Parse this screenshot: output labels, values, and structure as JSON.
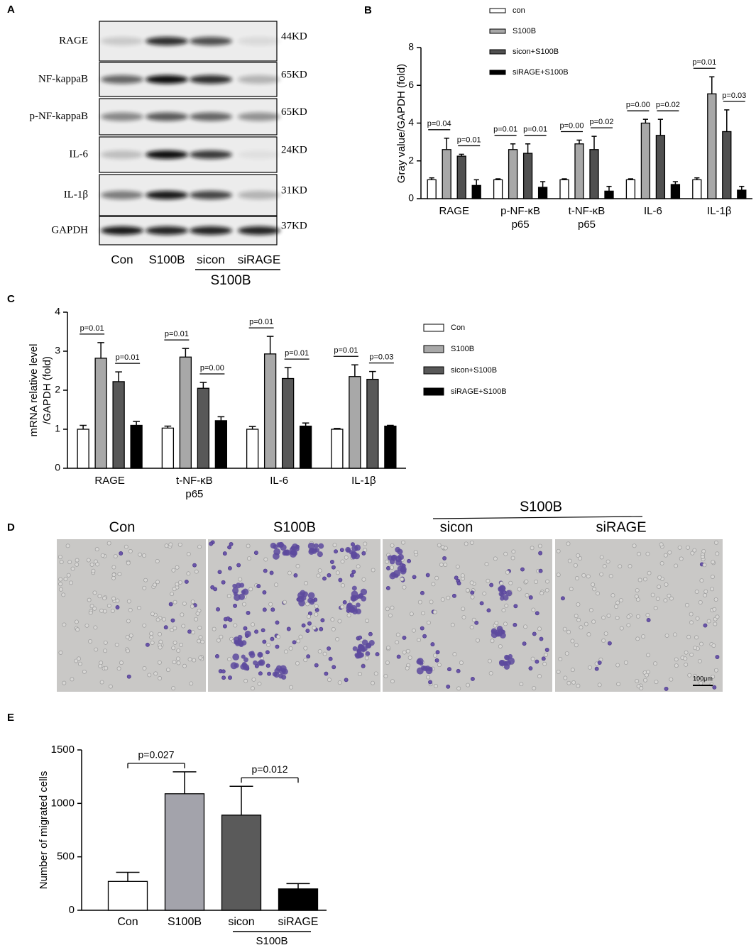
{
  "blot": {
    "panel_label": "A",
    "rows": [
      {
        "label": "RAGE",
        "size": "44KD"
      },
      {
        "label": "NF-kappaB",
        "size": "65KD"
      },
      {
        "label": "p-NF-kappaB",
        "size": "65KD"
      },
      {
        "label": "IL-6",
        "size": "24KD"
      },
      {
        "label": "IL-1β",
        "size": "31KD"
      },
      {
        "label": "GAPDH",
        "size": "37KD"
      }
    ],
    "lanes": [
      "Con",
      "S100B",
      "sicon",
      "siRAGE"
    ],
    "group_label": "S100B"
  },
  "chart_data": [
    {
      "type": "bar",
      "panel_label": "B",
      "ylabel": "Gray value/GAPDH (fold)",
      "categories": [
        [
          "RAGE"
        ],
        [
          "p-NF-κB",
          "p65"
        ],
        [
          "t-NF-κB",
          "p65"
        ],
        [
          "IL-6"
        ],
        [
          "IL-1β"
        ]
      ],
      "series": [
        {
          "name": "con",
          "color": "#ffffff",
          "values": [
            1.0,
            1.0,
            1.0,
            1.0,
            1.0
          ],
          "errors": [
            0.1,
            0.05,
            0.05,
            0.05,
            0.1
          ]
        },
        {
          "name": "S100B",
          "color": "#a8a8a8",
          "values": [
            2.6,
            2.6,
            2.9,
            4.0,
            5.55
          ],
          "errors": [
            0.6,
            0.3,
            0.2,
            0.2,
            0.9
          ]
        },
        {
          "name": "sicon+S100B",
          "color": "#505050",
          "values": [
            2.25,
            2.4,
            2.6,
            3.35,
            3.55
          ],
          "errors": [
            0.1,
            0.5,
            0.7,
            0.85,
            1.15
          ]
        },
        {
          "name": "siRAGE+S100B",
          "color": "#000000",
          "values": [
            0.7,
            0.6,
            0.4,
            0.75,
            0.45
          ],
          "errors": [
            0.3,
            0.3,
            0.25,
            0.15,
            0.2
          ]
        }
      ],
      "p_values": [
        [
          "p=0.04",
          "p=0.01"
        ],
        [
          "p=0.01",
          "p=0.01"
        ],
        [
          "p=0.00",
          "p=0.02"
        ],
        [
          "p=0.00",
          "p=0.02"
        ],
        [
          "p=0.01",
          "p=0.03"
        ]
      ],
      "ylim": [
        0,
        8
      ],
      "yticks": [
        0,
        2,
        4,
        6,
        8
      ]
    },
    {
      "type": "bar",
      "panel_label": "C",
      "ylabel": [
        "mRNA relative level",
        "/GAPDH (fold)"
      ],
      "categories": [
        [
          "RAGE"
        ],
        [
          "t-NF-κB",
          "p65"
        ],
        [
          "IL-6"
        ],
        [
          "IL-1β"
        ]
      ],
      "series": [
        {
          "name": "Con",
          "color": "#ffffff",
          "values": [
            1.0,
            1.03,
            1.0,
            1.0
          ],
          "errors": [
            0.1,
            0.05,
            0.07,
            0.02
          ]
        },
        {
          "name": "S100B",
          "color": "#a8a8a8",
          "values": [
            2.82,
            2.85,
            2.93,
            2.35
          ],
          "errors": [
            0.4,
            0.22,
            0.45,
            0.3
          ]
        },
        {
          "name": "sicon+S100B",
          "color": "#585858",
          "values": [
            2.22,
            2.05,
            2.3,
            2.28
          ],
          "errors": [
            0.25,
            0.15,
            0.28,
            0.2
          ]
        },
        {
          "name": "siRAGE+S100B",
          "color": "#000000",
          "values": [
            1.1,
            1.22,
            1.08,
            1.08
          ],
          "errors": [
            0.1,
            0.1,
            0.08,
            0.02
          ]
        }
      ],
      "p_values": [
        [
          "p=0.01",
          "p=0.01"
        ],
        [
          "p=0.01",
          "p=0.00"
        ],
        [
          "p=0.01",
          "p=0.01"
        ],
        [
          "p=0.01",
          "p=0.03"
        ]
      ],
      "ylim": [
        0,
        4
      ],
      "yticks": [
        0,
        1,
        2,
        3,
        4
      ]
    },
    {
      "type": "bar",
      "panel_label": "E",
      "ylabel": "Number of migrated cells",
      "categories": [
        "Con",
        "S100B",
        "sicon",
        "siRAGE"
      ],
      "group_label": "S100B",
      "values": [
        270,
        1090,
        890,
        200
      ],
      "errors": [
        85,
        205,
        270,
        50
      ],
      "colors": [
        "#ffffff",
        "#a3a3ab",
        "#5a5a5a",
        "#000000"
      ],
      "annotations": [
        "p=0.027",
        "p=0.012"
      ],
      "ylim": [
        0,
        1500
      ],
      "yticks": [
        0,
        500,
        1000,
        1500
      ]
    }
  ],
  "micrographs": {
    "panel_label": "D",
    "titles": [
      "Con",
      "S100B",
      "sicon",
      "siRAGE"
    ],
    "group_label": "S100B",
    "scale_bar": "100μm"
  }
}
